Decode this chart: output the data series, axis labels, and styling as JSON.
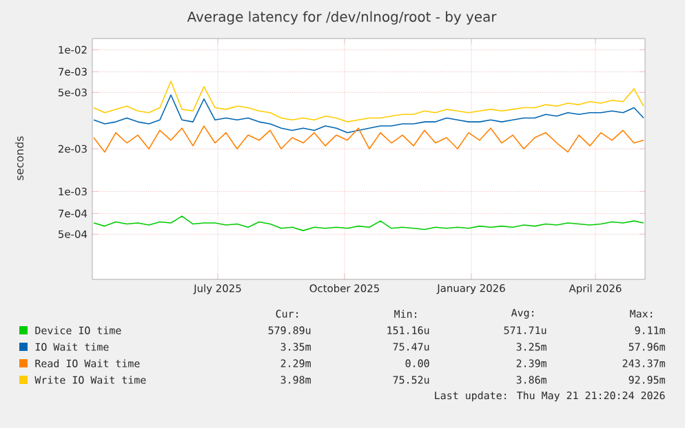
{
  "chart_data": {
    "type": "line",
    "title": "Average latency for /dev/nlnog/root - by year",
    "ylabel": "seconds",
    "log": "y",
    "grid": true,
    "legend": "bottom",
    "marker": "none",
    "line_style": "solid",
    "xlim": [
      "2025-04-16",
      "2026-05-22"
    ],
    "xticks": [
      {
        "value": "2025-07-16",
        "label": "July 2025"
      },
      {
        "value": "2025-10-16",
        "label": "October 2025"
      },
      {
        "value": "2026-01-16",
        "label": "January 2026"
      },
      {
        "value": "2026-04-16",
        "label": "April 2026"
      }
    ],
    "ylim": [
      0.00024,
      0.012
    ],
    "yticks": [
      {
        "value": 0.0005,
        "label": "5e-04"
      },
      {
        "value": 0.0007,
        "label": "7e-04"
      },
      {
        "value": 0.001,
        "label": "1e-03"
      },
      {
        "value": 0.002,
        "label": "2e-03"
      },
      {
        "value": 0.005,
        "label": "5e-03"
      },
      {
        "value": 0.007,
        "label": "7e-03"
      },
      {
        "value": 0.01,
        "label": "1e-02"
      }
    ],
    "x": [
      "2025-04-17",
      "2025-04-25",
      "2025-05-03",
      "2025-05-11",
      "2025-05-19",
      "2025-05-27",
      "2025-06-04",
      "2025-06-12",
      "2025-06-20",
      "2025-06-28",
      "2025-07-06",
      "2025-07-14",
      "2025-07-22",
      "2025-07-30",
      "2025-08-07",
      "2025-08-15",
      "2025-08-23",
      "2025-08-31",
      "2025-09-08",
      "2025-09-16",
      "2025-09-24",
      "2025-10-02",
      "2025-10-10",
      "2025-10-18",
      "2025-10-26",
      "2025-11-03",
      "2025-11-11",
      "2025-11-19",
      "2025-11-27",
      "2025-12-05",
      "2025-12-13",
      "2025-12-21",
      "2025-12-29",
      "2026-01-06",
      "2026-01-14",
      "2026-01-22",
      "2026-01-30",
      "2026-02-07",
      "2026-02-15",
      "2026-02-23",
      "2026-03-03",
      "2026-03-11",
      "2026-03-19",
      "2026-03-27",
      "2026-04-04",
      "2026-04-12",
      "2026-04-20",
      "2026-04-28",
      "2026-05-06",
      "2026-05-14",
      "2026-05-21"
    ],
    "series": [
      {
        "name": "Device IO time",
        "color": "#00cc00",
        "values": [
          0.0006,
          0.00057,
          0.00061,
          0.00059,
          0.0006,
          0.00058,
          0.00061,
          0.0006,
          0.00067,
          0.00059,
          0.0006,
          0.0006,
          0.00058,
          0.00059,
          0.00056,
          0.00061,
          0.00059,
          0.00055,
          0.00056,
          0.00053,
          0.00056,
          0.00055,
          0.00056,
          0.00055,
          0.00057,
          0.00056,
          0.00062,
          0.00055,
          0.00056,
          0.00055,
          0.00054,
          0.00056,
          0.00055,
          0.00056,
          0.00055,
          0.00057,
          0.00056,
          0.00057,
          0.00056,
          0.00058,
          0.00057,
          0.00059,
          0.00058,
          0.0006,
          0.00059,
          0.00058,
          0.00059,
          0.00061,
          0.0006,
          0.00062,
          0.0006
        ]
      },
      {
        "name": "IO Wait time",
        "color": "#0066b3",
        "values": [
          0.0032,
          0.003,
          0.0031,
          0.0033,
          0.0031,
          0.003,
          0.0032,
          0.0048,
          0.0032,
          0.0031,
          0.0045,
          0.0032,
          0.0033,
          0.0032,
          0.0033,
          0.0031,
          0.003,
          0.0028,
          0.0027,
          0.0028,
          0.0027,
          0.0029,
          0.0028,
          0.0026,
          0.0027,
          0.0028,
          0.0029,
          0.0029,
          0.003,
          0.003,
          0.0031,
          0.0031,
          0.0033,
          0.0032,
          0.0031,
          0.0031,
          0.0032,
          0.0031,
          0.0032,
          0.0033,
          0.0033,
          0.0035,
          0.0034,
          0.0036,
          0.0035,
          0.0036,
          0.0036,
          0.0037,
          0.0036,
          0.0039,
          0.0033
        ]
      },
      {
        "name": "Read IO Wait time",
        "color": "#ff8000",
        "values": [
          0.0024,
          0.0019,
          0.0026,
          0.0022,
          0.0025,
          0.002,
          0.0027,
          0.0023,
          0.0028,
          0.0021,
          0.0029,
          0.0022,
          0.0026,
          0.002,
          0.0025,
          0.0023,
          0.0027,
          0.002,
          0.0024,
          0.0022,
          0.0026,
          0.0021,
          0.0025,
          0.0023,
          0.0028,
          0.002,
          0.0026,
          0.0022,
          0.0025,
          0.0021,
          0.0027,
          0.0022,
          0.0024,
          0.002,
          0.0026,
          0.0023,
          0.0028,
          0.0022,
          0.0025,
          0.002,
          0.0024,
          0.0026,
          0.0022,
          0.0019,
          0.0025,
          0.0021,
          0.0026,
          0.0023,
          0.0027,
          0.0022,
          0.0023
        ]
      },
      {
        "name": "Write IO Wait time",
        "color": "#ffcc00",
        "values": [
          0.0039,
          0.0036,
          0.0038,
          0.004,
          0.0037,
          0.0036,
          0.0039,
          0.006,
          0.0038,
          0.0037,
          0.0055,
          0.0039,
          0.0038,
          0.004,
          0.0039,
          0.0037,
          0.0036,
          0.0033,
          0.0032,
          0.0033,
          0.0032,
          0.0034,
          0.0033,
          0.0031,
          0.0032,
          0.0033,
          0.0033,
          0.0034,
          0.0035,
          0.0035,
          0.0037,
          0.0036,
          0.0038,
          0.0037,
          0.0036,
          0.0037,
          0.0038,
          0.0037,
          0.0038,
          0.0039,
          0.0039,
          0.0041,
          0.004,
          0.0042,
          0.0041,
          0.0043,
          0.0042,
          0.0044,
          0.0043,
          0.0053,
          0.004
        ]
      }
    ],
    "annotations": [
      "Cur:",
      "Min:",
      "Avg:",
      "Max:",
      "579.89u",
      "151.16u",
      "571.71u",
      "9.11m",
      "3.35m",
      "75.47u",
      "3.25m",
      "57.96m",
      "2.29m",
      "0.00",
      "2.39m",
      "243.37m",
      "3.98m",
      "75.52u",
      "3.86m",
      "92.95m",
      "Last update: Thu May 21 21:20:24 2026"
    ]
  }
}
